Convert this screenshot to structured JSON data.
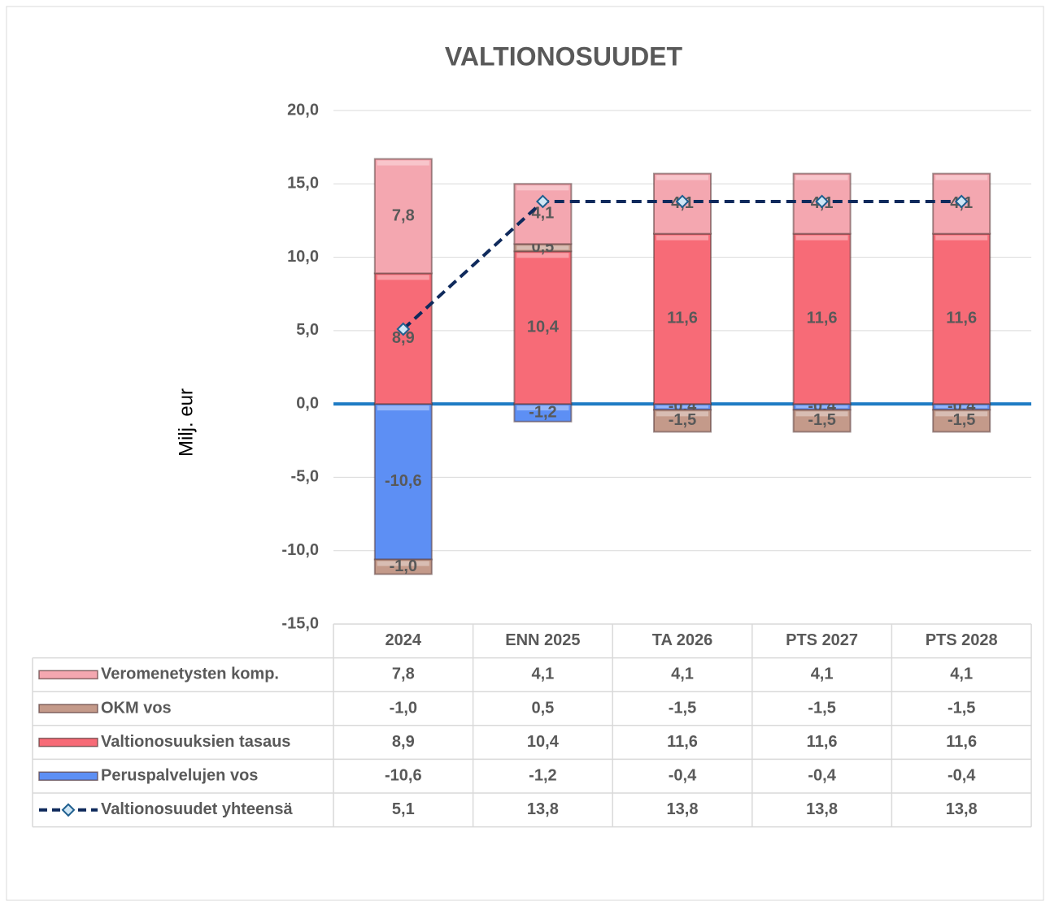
{
  "chart_data": {
    "type": "bar",
    "title": "VALTIONOSUUDET",
    "y_label": "Milj. eur",
    "categories": [
      "2024",
      "ENN 2025",
      "TA 2026",
      "PTS 2027",
      "PTS 2028"
    ],
    "stacked": true,
    "grid": true,
    "ylim": [
      -15,
      20
    ],
    "yticks": [
      {
        "value": -15,
        "label": "-15,0"
      },
      {
        "value": -10,
        "label": "-10,0"
      },
      {
        "value": -5,
        "label": "-5,0"
      },
      {
        "value": 0,
        "label": "0,0"
      },
      {
        "value": 5,
        "label": "5,0"
      },
      {
        "value": 10,
        "label": "10,0"
      },
      {
        "value": 15,
        "label": "15,0"
      },
      {
        "value": 20,
        "label": "20,0"
      }
    ],
    "series": [
      {
        "name": "Veromenetysten komp.",
        "color": "#f4a7b0",
        "values": [
          7.8,
          4.1,
          4.1,
          4.1,
          4.1
        ],
        "value_labels": [
          "7,8",
          "4,1",
          "4,1",
          "4,1",
          "4,1"
        ]
      },
      {
        "name": "OKM vos",
        "color": "#c49a8a",
        "values": [
          -1.0,
          0.5,
          -1.5,
          -1.5,
          -1.5
        ],
        "value_labels": [
          "-1,0",
          "0,5",
          "-1,5",
          "-1,5",
          "-1,5"
        ]
      },
      {
        "name": "Valtionosuuksien tasaus",
        "color": "#f76b77",
        "values": [
          8.9,
          10.4,
          11.6,
          11.6,
          11.6
        ],
        "value_labels": [
          "8,9",
          "10,4",
          "11,6",
          "11,6",
          "11,6"
        ]
      },
      {
        "name": "Peruspalvelujen vos",
        "color": "#5d8ff4",
        "values": [
          -10.6,
          -1.2,
          -0.4,
          -0.4,
          -0.4
        ],
        "value_labels": [
          "-10,6",
          "-1,2",
          "-0,4",
          "-0,4",
          "-0,4"
        ]
      },
      {
        "name": "Valtionosuudet yhteensä",
        "type": "line",
        "color": "#0f2a5c",
        "values": [
          5.1,
          13.8,
          13.8,
          13.8,
          13.8
        ],
        "value_labels": [
          "5,1",
          "13,8",
          "13,8",
          "13,8",
          "13,8"
        ]
      }
    ]
  }
}
